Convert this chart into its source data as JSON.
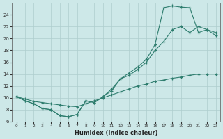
{
  "line1_x": [
    0,
    1,
    2,
    3,
    4,
    5,
    6,
    7,
    8,
    9,
    10,
    11,
    12,
    13,
    14,
    15,
    16,
    17,
    18,
    19,
    20,
    21,
    22,
    23
  ],
  "line1_y": [
    10.2,
    9.5,
    9.0,
    8.2,
    8.0,
    7.0,
    6.8,
    7.2,
    9.5,
    9.2,
    10.2,
    11.2,
    13.2,
    13.8,
    14.8,
    16.0,
    18.0,
    19.5,
    21.5,
    22.0,
    21.0,
    22.0,
    21.5,
    21.0
  ],
  "line2_x": [
    0,
    1,
    2,
    3,
    4,
    5,
    6,
    7,
    8,
    9,
    10,
    11,
    12,
    13,
    14,
    15,
    16,
    17,
    18,
    19,
    20,
    21,
    22,
    23
  ],
  "line2_y": [
    10.2,
    9.8,
    9.4,
    9.2,
    9.0,
    8.8,
    8.6,
    8.5,
    9.0,
    9.5,
    10.0,
    10.5,
    11.0,
    11.5,
    12.0,
    12.3,
    12.8,
    13.0,
    13.3,
    13.5,
    13.8,
    14.0,
    14.0,
    14.0
  ],
  "line3_x": [
    0,
    1,
    2,
    3,
    4,
    5,
    6,
    7,
    8,
    9,
    10,
    11,
    12,
    13,
    14,
    15,
    16,
    17,
    18,
    19,
    20,
    21,
    22,
    23
  ],
  "line3_y": [
    10.2,
    9.5,
    9.0,
    8.2,
    8.0,
    7.0,
    6.8,
    7.2,
    9.5,
    9.2,
    10.2,
    11.5,
    13.2,
    14.2,
    15.2,
    16.5,
    19.0,
    25.2,
    25.5,
    25.3,
    25.2,
    21.0,
    21.5,
    20.5
  ],
  "color": "#2e7d6e",
  "bg_color": "#cde8e8",
  "grid_color": "#aecece",
  "xlabel": "Humidex (Indice chaleur)",
  "ylim": [
    6,
    26
  ],
  "xlim": [
    -0.5,
    23.5
  ],
  "yticks": [
    6,
    8,
    10,
    12,
    14,
    16,
    18,
    20,
    22,
    24
  ],
  "xticks": [
    0,
    1,
    2,
    3,
    4,
    5,
    6,
    7,
    8,
    9,
    10,
    11,
    12,
    13,
    14,
    15,
    16,
    17,
    18,
    19,
    20,
    21,
    22,
    23
  ]
}
